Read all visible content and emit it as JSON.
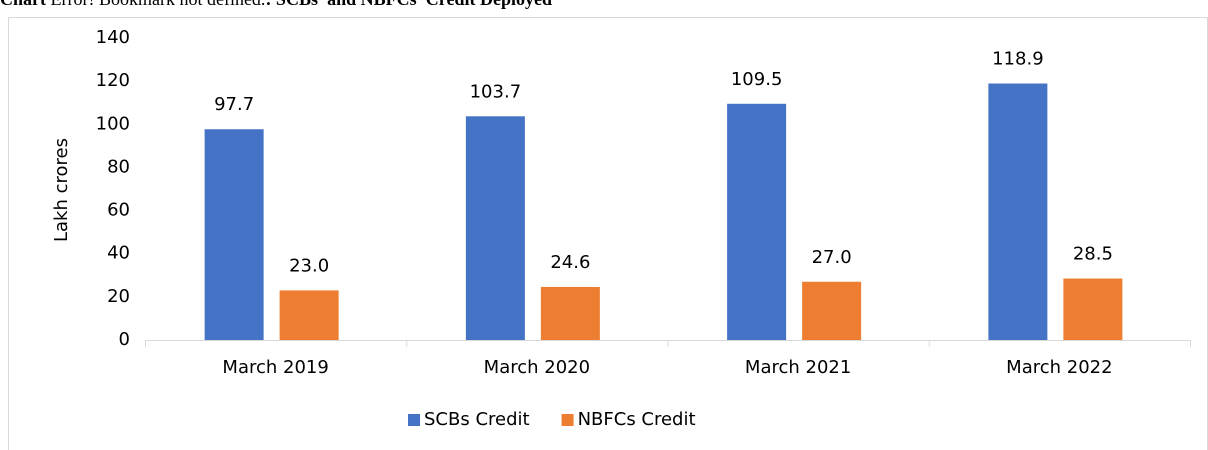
{
  "chart_data": {
    "type": "bar",
    "title_lead": "Chart",
    "title_error": "Error! Bookmark not defined.",
    "title_rest": ": SCBs’ and NBFCs’ Credit Deployed",
    "y_label": "Lakh crores",
    "categories": [
      "March 2019",
      "March 2020",
      "March 2021",
      "March 2022"
    ],
    "series": [
      {
        "name": "SCBs Credit",
        "color": "#4472c4",
        "values": [
          97.7,
          103.7,
          109.5,
          118.9
        ],
        "value_labels": [
          "97.7",
          "103.7",
          "109.5",
          "118.9"
        ]
      },
      {
        "name": "NBFCs Credit",
        "color": "#ed7d31",
        "values": [
          23.0,
          24.6,
          27.0,
          28.5
        ],
        "value_labels": [
          "23.0",
          "24.6",
          "27.0",
          "28.5"
        ]
      }
    ],
    "ylim": [
      0,
      140
    ],
    "yticks": [
      0,
      20,
      40,
      60,
      80,
      100,
      120,
      140
    ],
    "grid": false,
    "legend": "bottom"
  }
}
